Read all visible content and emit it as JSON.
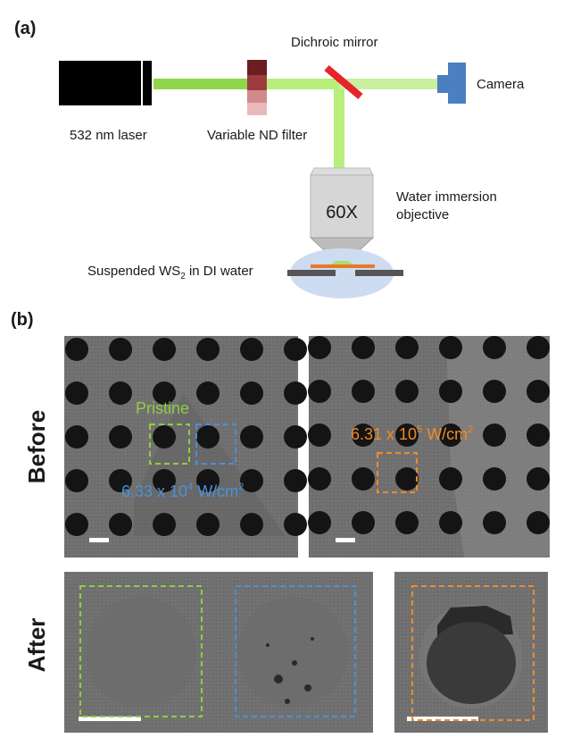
{
  "panel_a": {
    "label": "(a)",
    "laser": "532 nm laser",
    "nd_filter": "Variable ND filter",
    "mirror": "Dichroic mirror",
    "camera": "Camera",
    "objective_mag": "60X",
    "objective_line1": "Water immersion",
    "objective_line2": "objective",
    "sample_pre": "Suspended WS",
    "sample_sub": "2",
    "sample_post": " in DI water"
  },
  "panel_b": {
    "label": "(b)",
    "row_before": "Before",
    "row_after": "After",
    "pristine": "Pristine",
    "power_low_base": "6.33 x 10",
    "power_low_exp": "4",
    "power_high_base": "6.31 x 10",
    "power_high_exp": "5",
    "power_unit": " W/cm",
    "power_unit_exp": "2"
  },
  "colors": {
    "laser_beam": "#8fd64a",
    "laser_beam_light": "#c8f09a",
    "mirror": "#e8232a",
    "camera": "#4a7fc1",
    "pristine_box": "#8fce3f",
    "low_power_box": "#4a90d9",
    "high_power_box": "#f08a2b",
    "sem_bg": "#6f6f6f"
  }
}
